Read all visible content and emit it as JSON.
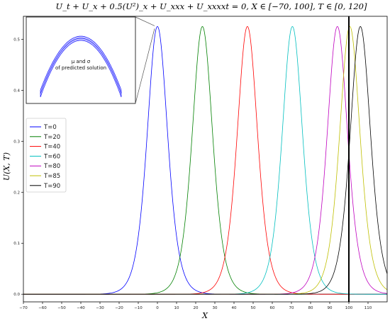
{
  "chart_data": {
    "type": "line",
    "title": "U_t + U_x + 0.5(U²)_x + U_xxx + U_xxxxt = 0,   X ∈ [−70, 100],   T ∈ [0, 120]",
    "xlabel": "X",
    "ylabel": "U(X, T)",
    "xlim": [
      -70,
      120
    ],
    "ylim": [
      -0.015,
      0.545
    ],
    "xticks": [
      "−70",
      "−60",
      "−50",
      "−40",
      "−30",
      "−20",
      "−10",
      "0",
      "10",
      "20",
      "30",
      "40",
      "50",
      "60",
      "70",
      "80",
      "90",
      "100",
      "110"
    ],
    "xtick_values": [
      -70,
      -60,
      -50,
      -40,
      -30,
      -20,
      -10,
      0,
      10,
      20,
      30,
      40,
      50,
      60,
      70,
      80,
      90,
      100,
      110
    ],
    "yticks": [
      "0.0",
      "0.1",
      "0.2",
      "0.3",
      "0.4",
      "0.5"
    ],
    "ytick_values": [
      0,
      0.1,
      0.2,
      0.3,
      0.4,
      0.5
    ],
    "grid": false,
    "legend_position": "center-left",
    "vertical_line_x": 100,
    "series": [
      {
        "name": "T=0",
        "color": "#0000ff",
        "peak_x": 0,
        "amplitude": 0.525
      },
      {
        "name": "T=20",
        "color": "#008000",
        "peak_x": 23.5,
        "amplitude": 0.525
      },
      {
        "name": "T=40",
        "color": "#ff0000",
        "peak_x": 47,
        "amplitude": 0.525
      },
      {
        "name": "T=60",
        "color": "#00bfbf",
        "peak_x": 70.5,
        "amplitude": 0.525
      },
      {
        "name": "T=80",
        "color": "#bf00bf",
        "peak_x": 94,
        "amplitude": 0.525
      },
      {
        "name": "T=85",
        "color": "#bfbf00",
        "peak_x": 100.5,
        "amplitude": 0.525
      },
      {
        "name": "T=90",
        "color": "#000000",
        "peak_x": 106,
        "amplitude": 0.525
      }
    ],
    "inset": {
      "label_line1": "μ and σ",
      "label_line2": "of predicted solution",
      "color": "#0000ff"
    }
  }
}
